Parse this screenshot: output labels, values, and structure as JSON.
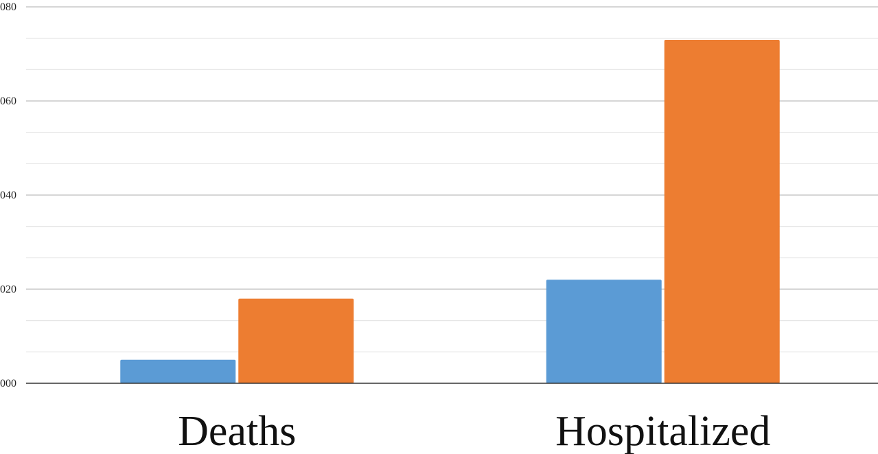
{
  "chart_data": {
    "type": "bar",
    "categories": [
      "Deaths",
      "Hospitalized"
    ],
    "series": [
      {
        "color": "#5b9bd5",
        "values": [
          0.005,
          0.022
        ]
      },
      {
        "color": "#ed7d31",
        "values": [
          0.018,
          0.073
        ]
      }
    ],
    "ylim": [
      0,
      0.08
    ],
    "y_ticks": [
      0,
      0.02,
      0.04,
      0.06,
      0.08
    ],
    "y_tick_labels": [
      "000",
      "020",
      "040",
      "060",
      "080"
    ],
    "y_minor_step": 0.00667,
    "grid": true,
    "legend": "none",
    "title": "",
    "xlabel": "",
    "ylabel": ""
  }
}
